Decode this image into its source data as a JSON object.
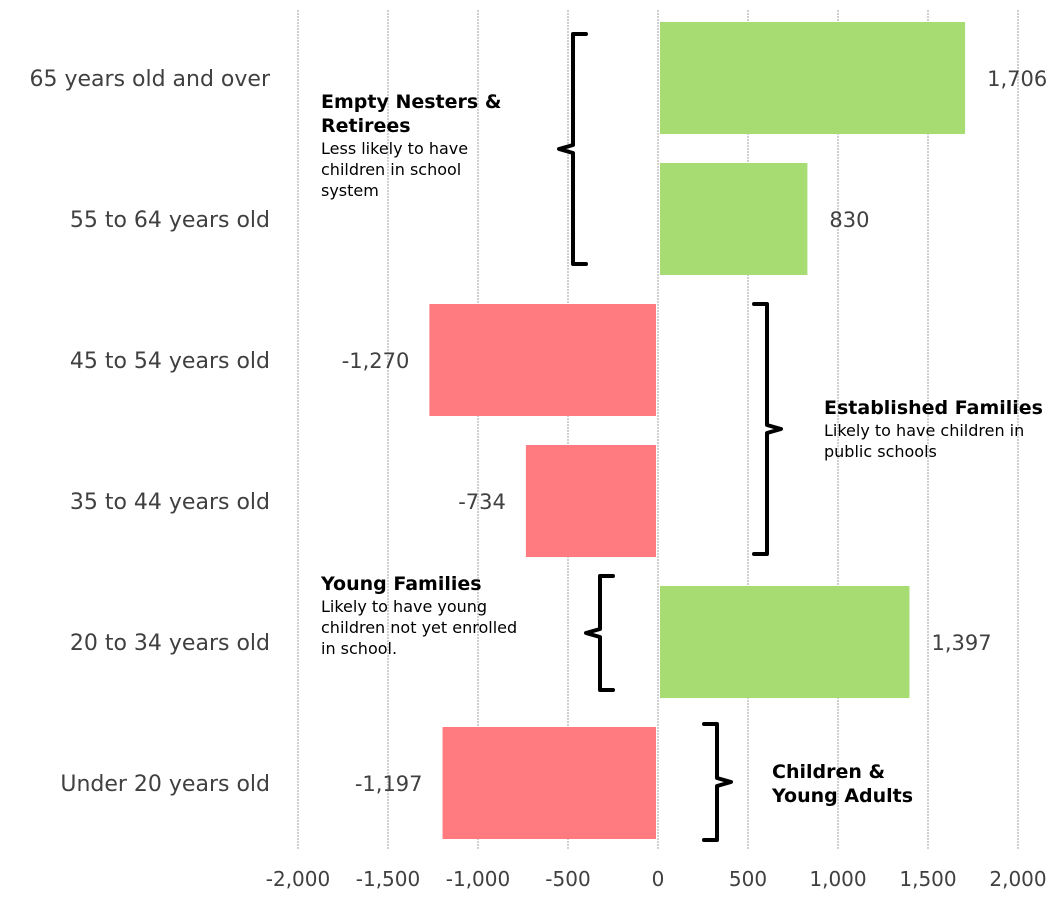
{
  "chart_data": {
    "type": "bar",
    "orientation": "horizontal",
    "categories": [
      "65 years old and over",
      "55 to 64 years old",
      "45 to 54 years old",
      "35 to 44 years old",
      "20 to 34 years old",
      "Under 20 years old"
    ],
    "values": [
      1706,
      830,
      -1270,
      -734,
      1397,
      -1197
    ],
    "value_labels": [
      "1,706",
      "830",
      "-1,270",
      "-734",
      "1,397",
      "-1,197"
    ],
    "xlim": [
      -2000,
      2000
    ],
    "x_ticks": [
      -2000,
      -1500,
      -1000,
      -500,
      0,
      500,
      1000,
      1500,
      2000
    ],
    "x_tick_labels": [
      "-2,000",
      "-1,500",
      "-1,000",
      "-500",
      "0",
      "500",
      "1,000",
      "1,500",
      "2,000"
    ],
    "grid": "vertical",
    "colors": {
      "positive": "#a6dc72",
      "negative": "#ff7b80",
      "grid": "#d0d0d0"
    },
    "annotations": [
      {
        "title_lines": [
          "Empty Nesters &",
          "Retirees"
        ],
        "desc_lines": [
          "Less likely to have",
          "children in school",
          "system"
        ],
        "spans": [
          0,
          1
        ]
      },
      {
        "title_lines": [
          "Established Families"
        ],
        "desc_lines": [
          "Likely to have children in",
          "public schools"
        ],
        "spans": [
          2,
          3
        ]
      },
      {
        "title_lines": [
          "Young Families"
        ],
        "desc_lines": [
          "Likely to have young",
          "children not yet enrolled",
          "in school."
        ],
        "spans": [
          4,
          4
        ]
      },
      {
        "title_lines": [
          "Children &",
          "Young Adults"
        ],
        "desc_lines": [],
        "spans": [
          5,
          5
        ]
      }
    ]
  }
}
